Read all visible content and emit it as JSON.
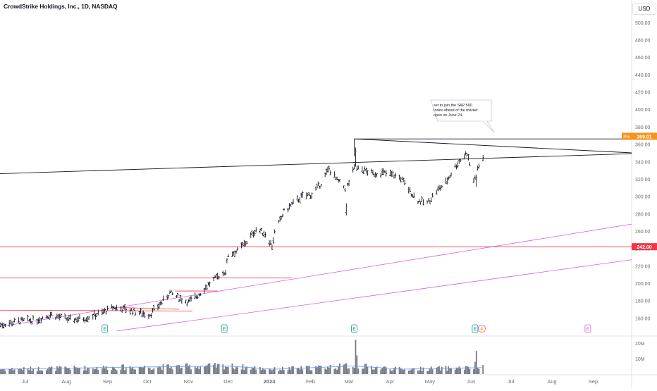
{
  "header": {
    "title": "CrowdStrike Holdings, Inc., 1D, NASDAQ",
    "currency": "USD"
  },
  "chart_data": {
    "type": "ohlc",
    "title": "CrowdStrike Holdings, Inc., 1D, NASDAQ",
    "ylim": [
      140,
      508
    ],
    "y_ticks": [
      160,
      180,
      200,
      220,
      240,
      260,
      280,
      300,
      320,
      340,
      360,
      380,
      400,
      420,
      440,
      460,
      480,
      500
    ],
    "x_range": [
      "2023-06-12",
      "2024-09-30"
    ],
    "x_ticks": [
      {
        "date": "2023-07-01",
        "label": "Jul"
      },
      {
        "date": "2023-08-01",
        "label": "Aug"
      },
      {
        "date": "2023-09-01",
        "label": "Sep"
      },
      {
        "date": "2023-10-01",
        "label": "Oct"
      },
      {
        "date": "2023-11-01",
        "label": "Nov"
      },
      {
        "date": "2023-12-01",
        "label": "Dec"
      },
      {
        "date": "2024-01-01",
        "label": "2024"
      },
      {
        "date": "2024-02-01",
        "label": "Feb"
      },
      {
        "date": "2024-03-01",
        "label": "Mar"
      },
      {
        "date": "2024-04-01",
        "label": "Apr"
      },
      {
        "date": "2024-05-01",
        "label": "May"
      },
      {
        "date": "2024-06-01",
        "label": "Jun"
      },
      {
        "date": "2024-07-01",
        "label": "Jul"
      },
      {
        "date": "2024-08-01",
        "label": "Aug"
      },
      {
        "date": "2024-09-01",
        "label": "Sep"
      }
    ],
    "price_path": [
      [
        "2023-06-12",
        152
      ],
      [
        "2023-06-25",
        156
      ],
      [
        "2023-07-10",
        158
      ],
      [
        "2023-07-20",
        164
      ],
      [
        "2023-08-03",
        158
      ],
      [
        "2023-08-15",
        160
      ],
      [
        "2023-08-28",
        166
      ],
      [
        "2023-09-05",
        172
      ],
      [
        "2023-09-15",
        170
      ],
      [
        "2023-09-25",
        166
      ],
      [
        "2023-10-03",
        164
      ],
      [
        "2023-10-12",
        178
      ],
      [
        "2023-10-18",
        189
      ],
      [
        "2023-10-25",
        183
      ],
      [
        "2023-11-01",
        178
      ],
      [
        "2023-11-08",
        186
      ],
      [
        "2023-11-15",
        197
      ],
      [
        "2023-11-22",
        206
      ],
      [
        "2023-11-29",
        214
      ],
      [
        "2023-12-01",
        233
      ],
      [
        "2023-12-08",
        237
      ],
      [
        "2023-12-15",
        248
      ],
      [
        "2023-12-22",
        262
      ],
      [
        "2023-12-29",
        257
      ],
      [
        "2024-01-03",
        243
      ],
      [
        "2024-01-05",
        258
      ],
      [
        "2024-01-12",
        282
      ],
      [
        "2024-01-19",
        292
      ],
      [
        "2024-01-26",
        300
      ],
      [
        "2024-02-02",
        302
      ],
      [
        "2024-02-09",
        315
      ],
      [
        "2024-02-15",
        332
      ],
      [
        "2024-02-21",
        318
      ],
      [
        "2024-02-28",
        308
      ],
      [
        "2024-03-05",
        332
      ],
      [
        "2024-03-12",
        330
      ],
      [
        "2024-03-19",
        326
      ],
      [
        "2024-03-26",
        327
      ],
      [
        "2024-04-02",
        325
      ],
      [
        "2024-04-09",
        321
      ],
      [
        "2024-04-16",
        306
      ],
      [
        "2024-04-22",
        295
      ],
      [
        "2024-04-29",
        292
      ],
      [
        "2024-05-06",
        306
      ],
      [
        "2024-05-13",
        316
      ],
      [
        "2024-05-20",
        334
      ],
      [
        "2024-05-24",
        342
      ],
      [
        "2024-05-29",
        350
      ],
      [
        "2024-06-03",
        318
      ],
      [
        "2024-06-06",
        332
      ],
      [
        "2024-06-10",
        346
      ]
    ],
    "volume_path": [
      [
        "2023-06-12",
        3
      ],
      [
        "2023-08-30",
        4
      ],
      [
        "2023-11-29",
        5
      ],
      [
        "2024-01-05",
        3
      ],
      [
        "2024-03-05",
        5
      ],
      [
        "2024-04-10",
        3
      ],
      [
        "2024-06-10",
        4
      ]
    ],
    "volume_spikes": [
      {
        "date": "2024-03-06",
        "value": 22
      },
      {
        "date": "2024-03-07",
        "value": 12
      },
      {
        "date": "2024-02-28",
        "value": 7
      },
      {
        "date": "2024-06-05",
        "value": 15
      },
      {
        "date": "2024-06-04",
        "value": 8
      }
    ],
    "volume_ylim": [
      0,
      24
    ],
    "volume_ticks": [
      {
        "value": 10,
        "label": "10M"
      },
      {
        "value": 20,
        "label": "20M"
      }
    ],
    "horizontal_lines": [
      {
        "value": 242,
        "color": "#f23645",
        "label": "242.00"
      },
      {
        "value": 366,
        "color": "#131722",
        "label": ""
      }
    ],
    "price_badges": [
      {
        "value": 369.01,
        "prefix": "Pre",
        "label": "369.01",
        "color": "#f7931a"
      },
      {
        "value": 242,
        "label": "242.00",
        "color": "#f23645"
      }
    ],
    "earnings_markers": [
      {
        "date": "2023-08-30",
        "label": "E"
      },
      {
        "date": "2023-11-28",
        "label": "E"
      },
      {
        "date": "2024-03-05",
        "label": "E"
      },
      {
        "date": "2024-06-04",
        "label": "E"
      },
      {
        "date": "2024-08-28",
        "label": "E"
      }
    ],
    "split_marker": {
      "date": "2024-06-07",
      "glyph": "⚡"
    },
    "annotation": {
      "lines": [
        "set to join the S&P 500",
        "Index ahead of the market",
        "open on June 24."
      ]
    },
    "colors": {
      "trendline": "#131722",
      "support": "#f23645",
      "channel": "#d65fe0",
      "volume_bar": "#787b86",
      "volume_avg": "#5b9cf6",
      "earnings_past": "#089981",
      "earnings_future": "#d65fe0"
    }
  }
}
